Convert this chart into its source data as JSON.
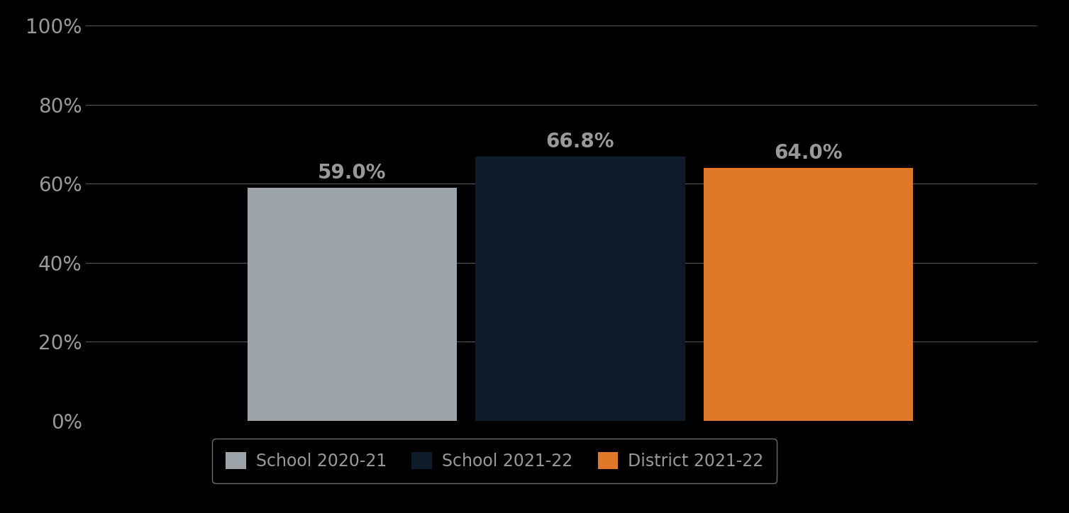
{
  "categories": [
    "School 2020-21",
    "School 2021-22",
    "District 2021-22"
  ],
  "values": [
    0.59,
    0.668,
    0.64
  ],
  "bar_colors": [
    "#9EA3A8",
    "#0D1B2A",
    "#E07828"
  ],
  "label_texts": [
    "59.0%",
    "66.8%",
    "64.0%"
  ],
  "ylim": [
    0,
    1.0
  ],
  "yticks": [
    0.0,
    0.2,
    0.4,
    0.6,
    0.8,
    1.0
  ],
  "ytick_labels": [
    "0%",
    "20%",
    "40%",
    "60%",
    "80%",
    "100%"
  ],
  "background_color": "#000000",
  "text_color": "#999999",
  "label_fontsize": 20,
  "tick_fontsize": 20,
  "legend_fontsize": 17,
  "bar_width": 0.22,
  "grid_color": "#555555",
  "legend_edge_color": "#888888",
  "x_positions": [
    0.28,
    0.52,
    0.76
  ],
  "xlim": [
    0.0,
    1.0
  ]
}
